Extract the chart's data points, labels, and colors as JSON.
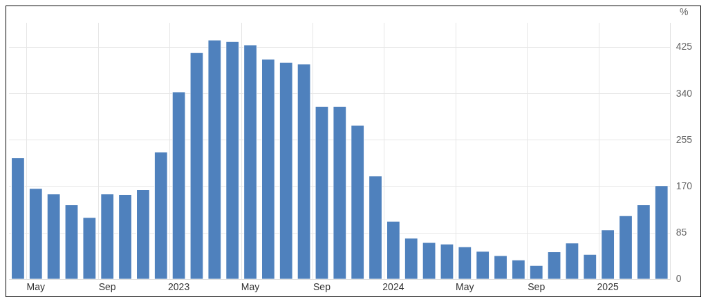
{
  "chart_data": {
    "type": "bar",
    "ylabel": "%",
    "categories": [
      null,
      "May",
      null,
      null,
      null,
      "Sep",
      null,
      null,
      null,
      "2023",
      null,
      null,
      null,
      "May",
      null,
      null,
      null,
      "Sep",
      null,
      null,
      null,
      "2024",
      null,
      null,
      null,
      "May",
      null,
      null,
      null,
      "Sep",
      null,
      null,
      null,
      "2025",
      null,
      null,
      null
    ],
    "values": [
      223,
      167,
      157,
      137,
      114,
      157,
      156,
      165,
      234,
      344,
      416,
      439,
      436,
      430,
      404,
      398,
      395,
      317,
      317,
      283,
      190,
      107,
      76,
      68,
      65,
      60,
      52,
      44,
      36,
      26,
      51,
      67,
      46,
      91,
      117,
      137,
      172
    ],
    "color": "#4f81bd",
    "ylim": [
      0,
      470
    ],
    "yticks": [
      0,
      85,
      170,
      255,
      340,
      425
    ],
    "grid": true
  }
}
